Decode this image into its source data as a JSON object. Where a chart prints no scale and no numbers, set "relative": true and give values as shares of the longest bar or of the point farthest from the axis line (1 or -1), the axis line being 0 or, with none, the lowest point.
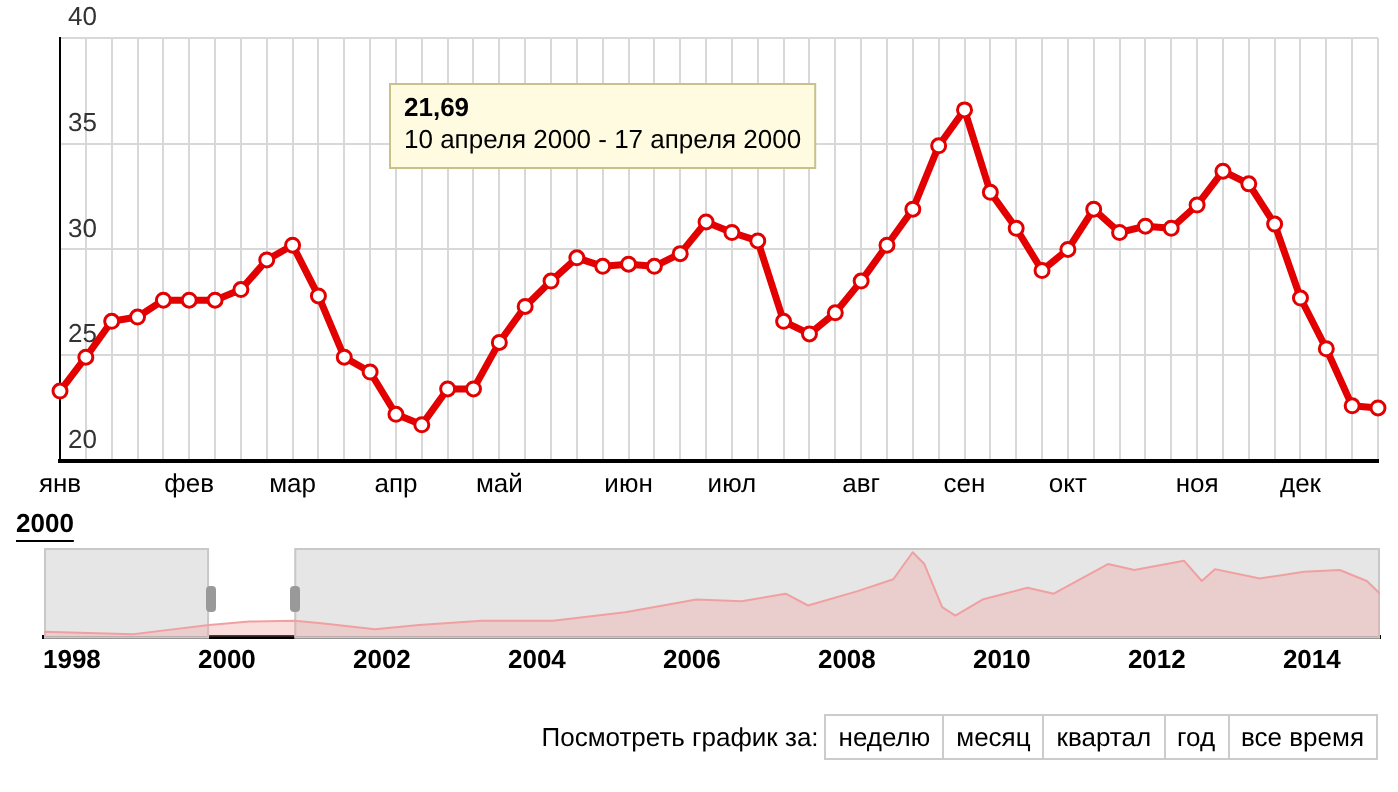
{
  "chart_data": [
    {
      "type": "line",
      "xlabel": "2000",
      "categories": [
        "янв",
        null,
        null,
        null,
        null,
        "фев",
        null,
        null,
        null,
        "мар",
        null,
        null,
        null,
        "апр",
        null,
        null,
        null,
        "май",
        null,
        null,
        null,
        null,
        "июн",
        null,
        null,
        null,
        "июл",
        null,
        null,
        null,
        null,
        "авг",
        null,
        null,
        null,
        "сен",
        null,
        null,
        null,
        "окт",
        null,
        null,
        null,
        null,
        "ноя",
        null,
        null,
        null,
        "дек",
        null,
        null,
        null
      ],
      "series": [
        {
          "color": "#e30000",
          "values": [
            23.3,
            24.9,
            26.6,
            26.8,
            27.6,
            27.6,
            27.6,
            28.1,
            29.5,
            30.2,
            27.8,
            24.9,
            24.2,
            22.2,
            21.7,
            23.4,
            23.4,
            25.6,
            27.3,
            28.5,
            29.6,
            29.2,
            29.3,
            29.2,
            29.8,
            31.3,
            30.8,
            30.4,
            26.6,
            26.0,
            27.0,
            28.5,
            30.2,
            31.9,
            34.9,
            36.6,
            32.7,
            31.0,
            29.0,
            30.0,
            31.9,
            30.8,
            31.1,
            31.0,
            32.1,
            33.7,
            33.1,
            31.2,
            27.7,
            25.3,
            22.6,
            22.5
          ]
        }
      ],
      "ylim": [
        20,
        40
      ],
      "yticks": [
        20,
        25,
        30,
        35,
        40
      ],
      "grid": true,
      "legend": false,
      "marker": "circle",
      "line_style": "solid",
      "annotations": [
        "21,69\n10 апреля 2000 - 17 апреля 2000"
      ]
    },
    {
      "type": "area",
      "relative": true,
      "x": [
        1997.64,
        1998.79,
        1999.14,
        1999.77,
        2000.29,
        2000.87,
        2001.22,
        2001.91,
        2002.48,
        2003.29,
        2004.21,
        2005.14,
        2006.06,
        2006.64,
        2007.21,
        2007.5,
        2008.14,
        2008.6,
        2008.85,
        2009.0,
        2009.23,
        2009.4,
        2009.75,
        2010.33,
        2010.67,
        2011.37,
        2011.71,
        2012.35,
        2012.58,
        2012.75,
        2013.33,
        2013.9,
        2014.36,
        2014.71,
        2014.88
      ],
      "series": [
        {
          "color": "#f0a0a0",
          "values": [
            0.06,
            0.03,
            0.07,
            0.14,
            0.18,
            0.19,
            0.16,
            0.09,
            0.14,
            0.19,
            0.19,
            0.29,
            0.44,
            0.42,
            0.51,
            0.37,
            0.54,
            0.68,
            1.0,
            0.86,
            0.35,
            0.25,
            0.44,
            0.58,
            0.51,
            0.86,
            0.79,
            0.9,
            0.66,
            0.8,
            0.69,
            0.77,
            0.79,
            0.66,
            0.51
          ]
        }
      ],
      "xlim": [
        1997.64,
        2014.88
      ],
      "xticks": [
        1998,
        2000,
        2002,
        2004,
        2006,
        2008,
        2010,
        2012,
        2014
      ],
      "grid": false,
      "legend": false,
      "bands": [
        {
          "axis": "x",
          "from": 1997.64,
          "to": 1999.77,
          "color": "#e6e6e6"
        },
        {
          "axis": "x",
          "from": 2000.87,
          "to": 2014.88,
          "color": "#e6e6e6"
        }
      ],
      "annotations": [
        "Посмотреть график за:",
        "неделю",
        "месяц",
        "квартал",
        "год",
        "все время"
      ]
    }
  ]
}
